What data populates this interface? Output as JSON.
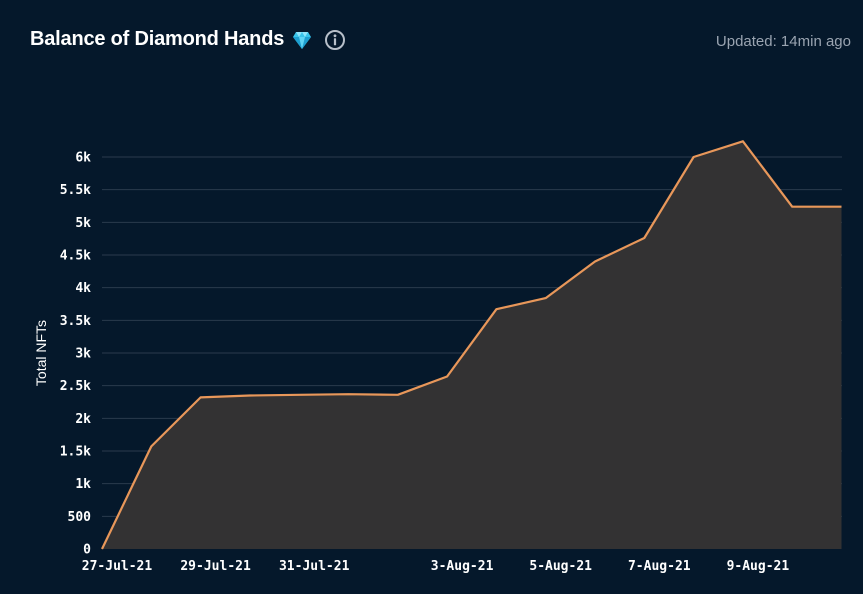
{
  "header": {
    "title": "Balance of Diamond Hands",
    "updated": "Updated: 14min ago",
    "gem_icon": "gem-icon",
    "info_icon": "info-icon"
  },
  "colors": {
    "background": "#05182b",
    "line": "#e8975a",
    "area": "#333233",
    "grid": "#2a3a4c"
  },
  "chart_data": {
    "type": "area",
    "title": "Balance of Diamond Hands",
    "xlabel": "",
    "ylabel": "Total NFTs",
    "ylim": [
      0,
      6000
    ],
    "yticks": [
      {
        "value": 0,
        "label": "0"
      },
      {
        "value": 500,
        "label": "500"
      },
      {
        "value": 1000,
        "label": "1k"
      },
      {
        "value": 1500,
        "label": "1.5k"
      },
      {
        "value": 2000,
        "label": "2k"
      },
      {
        "value": 2500,
        "label": "2.5k"
      },
      {
        "value": 3000,
        "label": "3k"
      },
      {
        "value": 3500,
        "label": "3.5k"
      },
      {
        "value": 4000,
        "label": "4k"
      },
      {
        "value": 4500,
        "label": "4.5k"
      },
      {
        "value": 5000,
        "label": "5k"
      },
      {
        "value": 5500,
        "label": "5.5k"
      },
      {
        "value": 6000,
        "label": "6k"
      }
    ],
    "xticks": [
      "27-Jul-21",
      "29-Jul-21",
      "31-Jul-21",
      "3-Aug-21",
      "5-Aug-21",
      "7-Aug-21",
      "9-Aug-21"
    ],
    "grid": true,
    "legend": "none",
    "series": [
      {
        "x": [
          "2021-07-27",
          "2021-07-28",
          "2021-07-29",
          "2021-07-30",
          "2021-07-31",
          "2021-08-01",
          "2021-08-02",
          "2021-08-03",
          "2021-08-04",
          "2021-08-05",
          "2021-08-06",
          "2021-08-07",
          "2021-08-08",
          "2021-08-09",
          "2021-08-10",
          "2021-08-11"
        ],
        "values": [
          0,
          1570,
          2320,
          2350,
          2360,
          2370,
          2360,
          2640,
          3670,
          3840,
          4400,
          4760,
          6000,
          6240,
          5240,
          5240
        ]
      }
    ]
  }
}
